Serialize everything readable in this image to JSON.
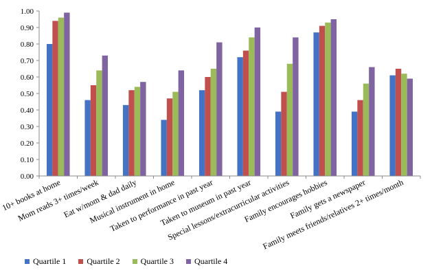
{
  "chart_data": {
    "type": "bar",
    "categories": [
      "10+ books at home",
      "Mom reads 3+ times/week",
      "Eat w/mom & dad daily",
      "Musical instrument in home",
      "Taken to performance in past year",
      "Taken to museum in past year",
      "Special lessons/extracurricular activities",
      "Family encourages hobbies",
      "Family gets a newspaper",
      "Family meets friends/relatives 2+ times/month"
    ],
    "series": [
      {
        "name": "Quartile 1",
        "color": "#4472C4",
        "values": [
          0.8,
          0.46,
          0.43,
          0.34,
          0.52,
          0.72,
          0.39,
          0.87,
          0.39,
          0.61
        ]
      },
      {
        "name": "Quartile 2",
        "color": "#C0504D",
        "values": [
          0.94,
          0.55,
          0.52,
          0.47,
          0.6,
          0.76,
          0.51,
          0.91,
          0.46,
          0.65
        ]
      },
      {
        "name": "Quartile 3",
        "color": "#9BBB59",
        "values": [
          0.96,
          0.64,
          0.54,
          0.51,
          0.65,
          0.84,
          0.68,
          0.93,
          0.56,
          0.62
        ]
      },
      {
        "name": "Quartile 4",
        "color": "#8064A2",
        "values": [
          0.99,
          0.73,
          0.57,
          0.64,
          0.81,
          0.9,
          0.84,
          0.95,
          0.66,
          0.59
        ]
      }
    ],
    "yticks": [
      "0.00",
      "0.10",
      "0.20",
      "0.30",
      "0.40",
      "0.50",
      "0.60",
      "0.70",
      "0.80",
      "0.90",
      "1.00"
    ],
    "ylim": [
      0,
      1
    ],
    "grid": false,
    "legend_position": "bottom-left"
  }
}
